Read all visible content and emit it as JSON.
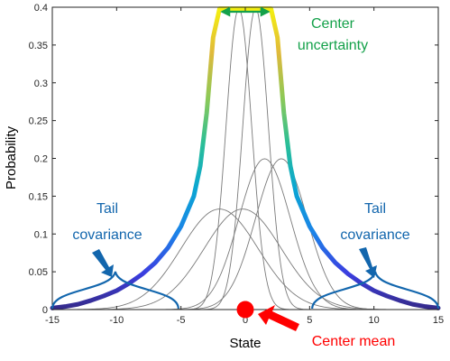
{
  "chart_data": {
    "type": "line",
    "xlabel": "State",
    "ylabel": "Probability",
    "xlim": [
      -15,
      15
    ],
    "ylim": [
      0,
      0.4
    ],
    "x_ticks": [
      -15,
      -10,
      -5,
      0,
      5,
      10,
      15
    ],
    "y_ticks": [
      0,
      0.05,
      0.1,
      0.15,
      0.2,
      0.25,
      0.3,
      0.35,
      0.4
    ],
    "grid": false,
    "envelope": {
      "colormap": "parula",
      "points": [
        [
          -15,
          0.002
        ],
        [
          -14,
          0.004
        ],
        [
          -13,
          0.007
        ],
        [
          -12,
          0.012
        ],
        [
          -11,
          0.018
        ],
        [
          -10,
          0.025
        ],
        [
          -9,
          0.035
        ],
        [
          -8,
          0.047
        ],
        [
          -7,
          0.062
        ],
        [
          -6,
          0.082
        ],
        [
          -5,
          0.11
        ],
        [
          -4,
          0.15
        ],
        [
          -3.5,
          0.19
        ],
        [
          -3,
          0.26
        ],
        [
          -2.5,
          0.36
        ],
        [
          -2,
          0.398
        ],
        [
          2,
          0.398
        ],
        [
          2.5,
          0.36
        ],
        [
          3,
          0.26
        ],
        [
          3.5,
          0.19
        ],
        [
          4,
          0.15
        ],
        [
          5,
          0.11
        ],
        [
          6,
          0.082
        ],
        [
          7,
          0.062
        ],
        [
          8,
          0.047
        ],
        [
          9,
          0.035
        ],
        [
          10,
          0.025
        ],
        [
          11,
          0.018
        ],
        [
          12,
          0.012
        ],
        [
          13,
          0.007
        ],
        [
          14,
          0.004
        ],
        [
          15,
          0.002
        ]
      ]
    },
    "component_curves": {
      "color": "#7a7a7a",
      "gaussians": [
        {
          "mean": -0.5,
          "sd": 1.0
        },
        {
          "mean": 0.8,
          "sd": 1.0
        },
        {
          "mean": 1.5,
          "sd": 2.0
        },
        {
          "mean": 2.8,
          "sd": 2.0
        },
        {
          "mean": -2.0,
          "sd": 3.0
        },
        {
          "mean": -0.2,
          "sd": 3.0
        }
      ]
    },
    "center_mean_marker": {
      "x": 0.0,
      "y": 0.0,
      "color": "#ff0000"
    },
    "tail_braces": [
      {
        "x_range": [
          -15,
          -5.2
        ],
        "color": "#1266ad"
      },
      {
        "x_range": [
          5.2,
          15
        ],
        "color": "#1266ad"
      }
    ],
    "center_span": {
      "x_range": [
        -2,
        2
      ],
      "y": 0.394,
      "color": "#14a14a"
    }
  },
  "annotations": {
    "center_uncertainty_line1": "Center",
    "center_uncertainty_line2": "uncertainty",
    "tail_left_line1": "Tail",
    "tail_left_line2": "covariance",
    "tail_right_line1": "Tail",
    "tail_right_line2": "covariance",
    "center_mean": "Center mean"
  },
  "colors": {
    "center_uncertainty": "#14a14a",
    "tail_covariance": "#1266ad",
    "center_mean": "#ff0000"
  }
}
